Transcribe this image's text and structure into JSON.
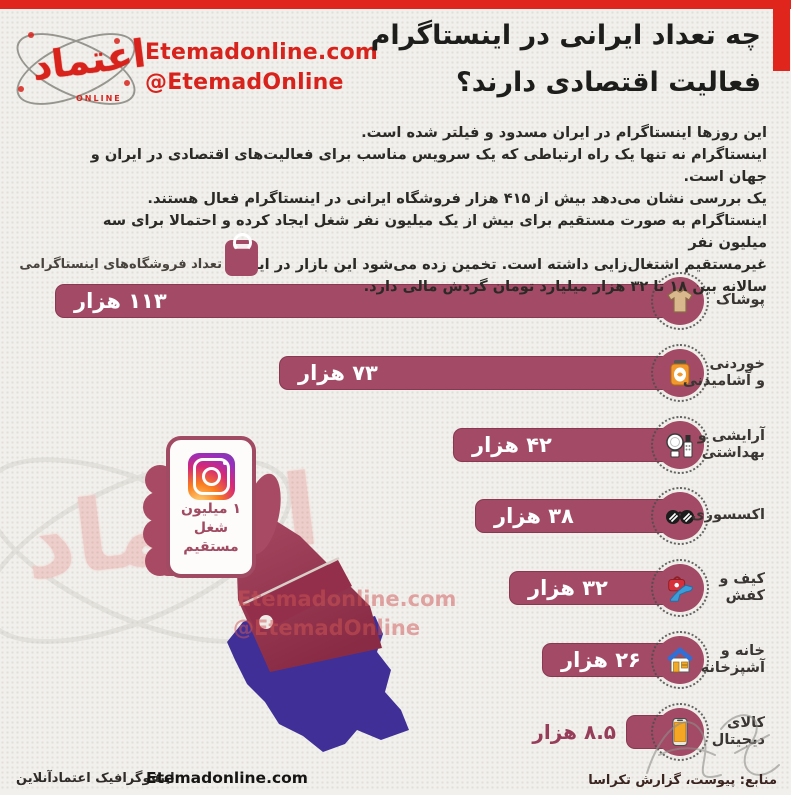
{
  "colors": {
    "accent_red": "#e0261c",
    "brand_red": "#d8231d",
    "bar": "#a24a66",
    "bar_dark": "#8d2f48",
    "hand": "#a84a63",
    "map_purple": "#402f97",
    "value_text": "#ffffff",
    "outside_value_text": "#963d5a",
    "background": "#f2f0ec"
  },
  "header": {
    "brand_url": "Etemadonline.com",
    "brand_handle": "@EtemadOnline",
    "logo_text": "اعتماد",
    "logo_online": "ONLINE",
    "title_line1": "چه تعداد ایرانی در اینستاگرام",
    "title_line2": "فعالیت اقتصادی دارند؟"
  },
  "intro": {
    "lines": [
      "این روزها اینستاگرام در ایران مسدود و فیلتر شده است.",
      "اینستاگرام نه تنها یک راه ارتباطی که یک سرویس مناسب برای فعالیت‌های اقتصادی در ایران و جهان است.",
      "یک بررسی نشان می‌دهد بیش از ۴۱۵ هزار فروشگاه ایرانی در اینستاگرام فعال هستند.",
      "اینستاگرام به صورت مستقیم برای بیش از یک میلیون نفر شغل ایجاد کرده و احتمالا برای سه میلیون نفر",
      "غیرمستقیم اشتغال‌زایی داشته است. تخمین زده می‌شود این بازار در ایران",
      "سالانه بین ۱۸ تا ۳۲ هزار میلیارد تومان گردش مالی دارد."
    ]
  },
  "legend": {
    "label": "تعداد فروشگاه‌های اینستاگرامی",
    "icon": "shopping-bag-icon"
  },
  "chart_data": {
    "type": "bar",
    "orientation": "horizontal",
    "title": "تعداد فروشگاه‌های اینستاگرامی",
    "unit": "هزار",
    "xlim": [
      0,
      120
    ],
    "categories": [
      "پوشاک",
      "خوردنی و آشامیدنی",
      "آرایشی و بهداشتی",
      "اکسسوری",
      "کیف و کفش",
      "خانه و آشپزخانه",
      "کالای دیجیتال"
    ],
    "category_lines": [
      [
        "پوشاک"
      ],
      [
        "خوردنی",
        "و آشامیدنی"
      ],
      [
        "آرایشی و",
        "بهداشتی"
      ],
      [
        "اکسسوری"
      ],
      [
        "کیف و",
        "کفش"
      ],
      [
        "خانه و",
        "آشپزخانه"
      ],
      [
        "کالای",
        "دیجیتال"
      ]
    ],
    "values": [
      113,
      73,
      42,
      38,
      32,
      26,
      8.5
    ],
    "value_labels": [
      "۱۱۳ هزار",
      "۷۳ هزار",
      "۴۲ هزار",
      "۳۸ هزار",
      "۳۲ هزار",
      "۲۶ هزار",
      "۸.۵ هزار"
    ],
    "icons": [
      "clothing-icon",
      "food-drink-icon",
      "cosmetics-icon",
      "accessories-icon",
      "bag-shoe-icon",
      "home-kitchen-icon",
      "smartphone-icon"
    ]
  },
  "phone_card": {
    "icon": "instagram-icon",
    "lines": [
      "۱ میلیون",
      "شغل",
      "مستقیم"
    ]
  },
  "watermark": {
    "url": "Etemadonline.com",
    "handle": "@EtemadOnline"
  },
  "footer": {
    "credit": "اینفوگرافیک اعتمادآنلاین",
    "site": "Etemadonline.com",
    "sources": "منابع: پیوست، گزارش تکراسا"
  }
}
